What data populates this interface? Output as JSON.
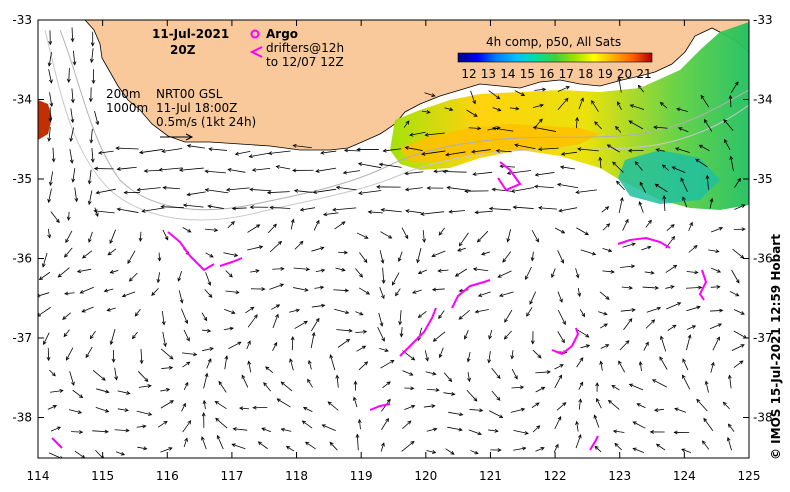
{
  "date": "11-Jul-2021",
  "hour": "20Z",
  "legend": {
    "argo_label": "Argo",
    "drifters_label": "drifters@12h",
    "drifters_to": "to 12/07 12Z"
  },
  "info": {
    "depth_200": "200m",
    "depth_1000": "1000m",
    "product": "NRT00 GSL",
    "time": "11-Jul 18:00Z",
    "scale": "0.5m/s (1kt 24h)"
  },
  "sst": {
    "title": "4h comp, p50, All Sats",
    "ticks": [
      "12",
      "13",
      "14",
      "15",
      "16",
      "17",
      "18",
      "19",
      "20",
      "21"
    ]
  },
  "axes": {
    "lon_ticks": [
      "114",
      "115",
      "116",
      "117",
      "118",
      "119",
      "120",
      "121",
      "122",
      "123",
      "124",
      "125"
    ],
    "lat_ticks": [
      "-33",
      "-34",
      "-35",
      "-36",
      "-37",
      "-38"
    ]
  },
  "credit": "© IMOS 15-Jul-2021 12:59 Hobart",
  "colors": {
    "land": "#f9c99b",
    "drifter": "#ff00ff",
    "sst_scale": [
      "#000080",
      "#0000ff",
      "#0080ff",
      "#00c0ff",
      "#00e0a0",
      "#40d040",
      "#a0e000",
      "#ffff00",
      "#ffb000",
      "#ff6000",
      "#b00000"
    ]
  }
}
